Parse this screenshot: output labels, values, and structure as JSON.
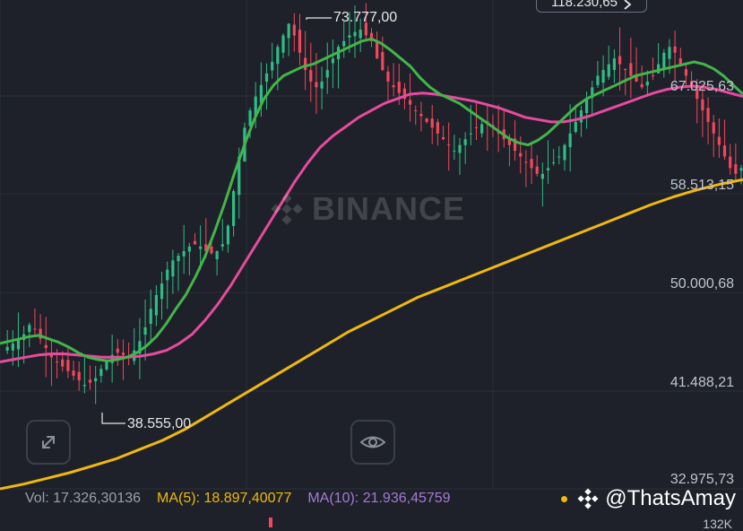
{
  "axis_labels": [
    "67.025,63",
    "58.513,15",
    "50.000,68",
    "41.488,21",
    "32.975,73"
  ],
  "extreme_high": "73.777,00",
  "extreme_low": "38.555,00",
  "top_badge": "118.230,65",
  "watermark": "BINANCE",
  "indicators": {
    "vol": "Vol: 17.326,30136",
    "ma5": "MA(5): 18.897,40077",
    "ma10": "MA(10): 21.936,45759"
  },
  "volume_axis_label": "132K",
  "overlay_handle": "@ThatsAmay",
  "icons": {
    "expand": "expand-icon",
    "eye": "eye-icon",
    "chevron": "chevron-right-icon",
    "logo": "binance-logo-icon"
  },
  "colors": {
    "background": "#1e2129",
    "grid": "#2b2f39",
    "up": "#2ebd85",
    "down": "#f6465d",
    "ma_fast": "#42b649",
    "ma_mid": "#e84a9f",
    "ma_slow": "#f0b90b",
    "vol_text": "#9aa0ab",
    "ma5_text": "#f0b90b",
    "ma10_text": "#a47bd6"
  },
  "chart_data": {
    "type": "candlestick",
    "price_axis": [
      67025.63,
      58513.15,
      50000.68,
      41488.21,
      32975.73
    ],
    "high_annotation": 73777.0,
    "low_annotation": 38555.0,
    "close_series_approx": [
      44200,
      44500,
      44800,
      45200,
      45600,
      46400,
      46000,
      45200,
      44400,
      43600,
      43200,
      42800,
      42400,
      42000,
      41600,
      41200,
      41400,
      41800,
      42600,
      43200,
      43800,
      44000,
      43800,
      43600,
      44200,
      45000,
      46200,
      47800,
      49000,
      50000,
      51200,
      52000,
      52400,
      52800,
      53200,
      53400,
      53200,
      52800,
      52600,
      52800,
      53400,
      55000,
      58000,
      61000,
      63500,
      65000,
      66200,
      67200,
      68200,
      69200,
      70500,
      71500,
      72500,
      71500,
      70000,
      68500,
      67500,
      67000,
      67500,
      68500,
      69500,
      70500,
      71000,
      71500,
      71800,
      72000,
      71500,
      71000,
      69500,
      68500,
      67500,
      67000,
      66500,
      66000,
      65500,
      65000,
      64500,
      64000,
      63500,
      63000,
      62500,
      62000,
      61500,
      62000,
      62500,
      63000,
      63500,
      63800,
      64000,
      63500,
      63000,
      62500,
      62000,
      61500,
      61000,
      60500,
      60000,
      59500,
      59500,
      60000,
      60500,
      61000,
      62000,
      63000,
      64000,
      65000,
      66000,
      67000,
      68000,
      68500,
      69000,
      69500,
      69000,
      68500,
      68000,
      67500,
      67000,
      67500,
      68000,
      69000,
      70000,
      70500,
      70000,
      69000,
      68000,
      67000,
      66000,
      65000,
      64000,
      63000,
      62000,
      61000,
      60000,
      59500,
      60000
    ],
    "moving_averages": [
      {
        "name": "fast",
        "approx": [
          44800,
          45000,
          45200,
          45400,
          45500,
          45200,
          44900,
          44500,
          44000,
          43600,
          43400,
          43300,
          43400,
          43600,
          44000,
          44600,
          45400,
          46500,
          47800,
          49000,
          50600,
          52400,
          54600,
          57000,
          59600,
          62000,
          64200,
          66000,
          67200,
          68000,
          68400,
          68800,
          69000,
          69400,
          69800,
          70200,
          70600,
          71000,
          71200,
          70800,
          70200,
          69500,
          68800,
          67800,
          67000,
          66400,
          66000,
          65600,
          65000,
          64400,
          63800,
          63200,
          62600,
          62200,
          62000,
          62400,
          63000,
          63800,
          64600,
          65400,
          66000,
          66400,
          66800,
          67200,
          67600,
          68000,
          68200,
          68400,
          68600,
          68800,
          69000,
          69200,
          69000,
          68600,
          68000,
          67200,
          66400
        ]
      },
      {
        "name": "mid",
        "approx": [
          43200,
          43400,
          43600,
          43800,
          43900,
          43900,
          43800,
          43700,
          43600,
          43600,
          43600,
          43700,
          43900,
          44200,
          44800,
          45600,
          46800,
          48200,
          49800,
          51600,
          53400,
          55200,
          57000,
          58800,
          60400,
          61800,
          62800,
          63600,
          64400,
          65000,
          65600,
          66000,
          66400,
          66500,
          66400,
          66200,
          66000,
          65800,
          65500,
          65200,
          64800,
          64400,
          64200,
          64000,
          64000,
          64200,
          64500,
          64900,
          65300,
          65700,
          66100,
          66500,
          66800,
          67000,
          67100,
          67000,
          66800,
          66500,
          66200
        ]
      },
      {
        "name": "slow",
        "approx": [
          32200,
          32600,
          33100,
          33600,
          34200,
          34800,
          35600,
          36400,
          37400,
          38600,
          39800,
          41000,
          42200,
          43400,
          44600,
          45800,
          46800,
          47800,
          48800,
          49600,
          50400,
          51200,
          52000,
          52800,
          53600,
          54400,
          55200,
          56000,
          56800,
          57500,
          58100,
          58600,
          59000
        ]
      }
    ]
  }
}
